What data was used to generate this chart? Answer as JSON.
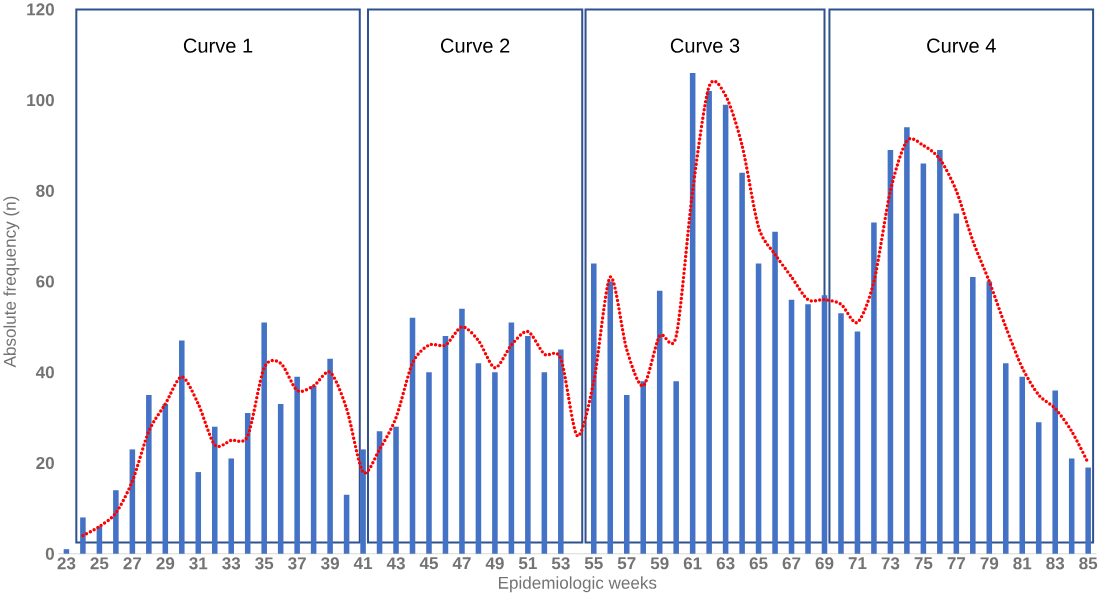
{
  "chart_data": {
    "type": "bar",
    "xlabel": "Epidemiologic weeks",
    "ylabel": "Absolute frequency (n)",
    "x": [
      23,
      24,
      25,
      26,
      27,
      28,
      29,
      30,
      31,
      32,
      33,
      34,
      35,
      36,
      37,
      38,
      39,
      40,
      41,
      42,
      43,
      44,
      45,
      46,
      47,
      48,
      49,
      50,
      51,
      52,
      53,
      54,
      55,
      56,
      57,
      58,
      59,
      60,
      61,
      62,
      63,
      64,
      65,
      66,
      67,
      68,
      69,
      70,
      71,
      72,
      73,
      74,
      75,
      76,
      77,
      78,
      79,
      80,
      81,
      82,
      83,
      84,
      85
    ],
    "series": [
      {
        "color": "#4472c4",
        "values": [
          1,
          8,
          6,
          14,
          23,
          35,
          33,
          47,
          18,
          28,
          21,
          31,
          51,
          33,
          39,
          37,
          43,
          13,
          23,
          27,
          28,
          52,
          40,
          48,
          54,
          42,
          40,
          51,
          48,
          40,
          45,
          null,
          64,
          60,
          35,
          38,
          58,
          38,
          106,
          102,
          99,
          84,
          64,
          71,
          56,
          55,
          57,
          53,
          49,
          73,
          89,
          94,
          86,
          89,
          75,
          61,
          60,
          42,
          39,
          29,
          36,
          21,
          19
        ]
      },
      {
        "type": "line",
        "color": "#ff0000",
        "line_style": "dotted",
        "x": [
          24,
          25,
          26,
          27,
          28,
          29,
          30,
          31,
          32,
          33,
          34,
          35,
          36,
          37,
          38,
          39,
          40,
          41,
          42,
          43,
          44,
          45,
          46,
          47,
          48,
          49,
          50,
          51,
          52,
          53,
          54,
          55,
          56,
          57,
          58,
          59,
          60,
          61,
          62,
          63,
          64,
          65,
          66,
          67,
          68,
          69,
          70,
          71,
          72,
          73,
          74,
          75,
          76,
          77,
          78,
          79,
          80,
          81,
          82,
          83,
          84,
          85
        ],
        "values": [
          4,
          6,
          9,
          16,
          27,
          33,
          39,
          33,
          24,
          25,
          26,
          41,
          42,
          36,
          37,
          40,
          32,
          18,
          23,
          30,
          42,
          46,
          46,
          50,
          47,
          41,
          46,
          49,
          44,
          43,
          26,
          38,
          61,
          45,
          37,
          48,
          48,
          80,
          103,
          101,
          90,
          72,
          66,
          61,
          56,
          56,
          55,
          51,
          60,
          80,
          91,
          90,
          87,
          80,
          69,
          60,
          50,
          41,
          35,
          32,
          27,
          20
        ]
      }
    ],
    "xlim": [
      22.5,
      85.5
    ],
    "xticks": [
      23,
      25,
      27,
      29,
      31,
      33,
      35,
      37,
      39,
      41,
      43,
      45,
      47,
      49,
      51,
      53,
      55,
      57,
      59,
      61,
      63,
      65,
      67,
      69,
      71,
      73,
      75,
      77,
      79,
      81,
      83,
      85
    ],
    "ylim": [
      0,
      120
    ],
    "yticks": [
      0,
      20,
      40,
      60,
      80,
      100,
      120
    ],
    "bands": [
      {
        "axis": "x",
        "from": 23.6,
        "to": 40.8,
        "label": "Curve 1",
        "color": "#2f528f"
      },
      {
        "axis": "x",
        "from": 41.3,
        "to": 54.3,
        "label": "Curve 2",
        "color": "#2f528f"
      },
      {
        "axis": "x",
        "from": 54.5,
        "to": 69.0,
        "label": "Curve 3",
        "color": "#2f528f"
      },
      {
        "axis": "x",
        "from": 69.3,
        "to": 85.3,
        "label": "Curve 4",
        "color": "#2f528f"
      }
    ]
  }
}
